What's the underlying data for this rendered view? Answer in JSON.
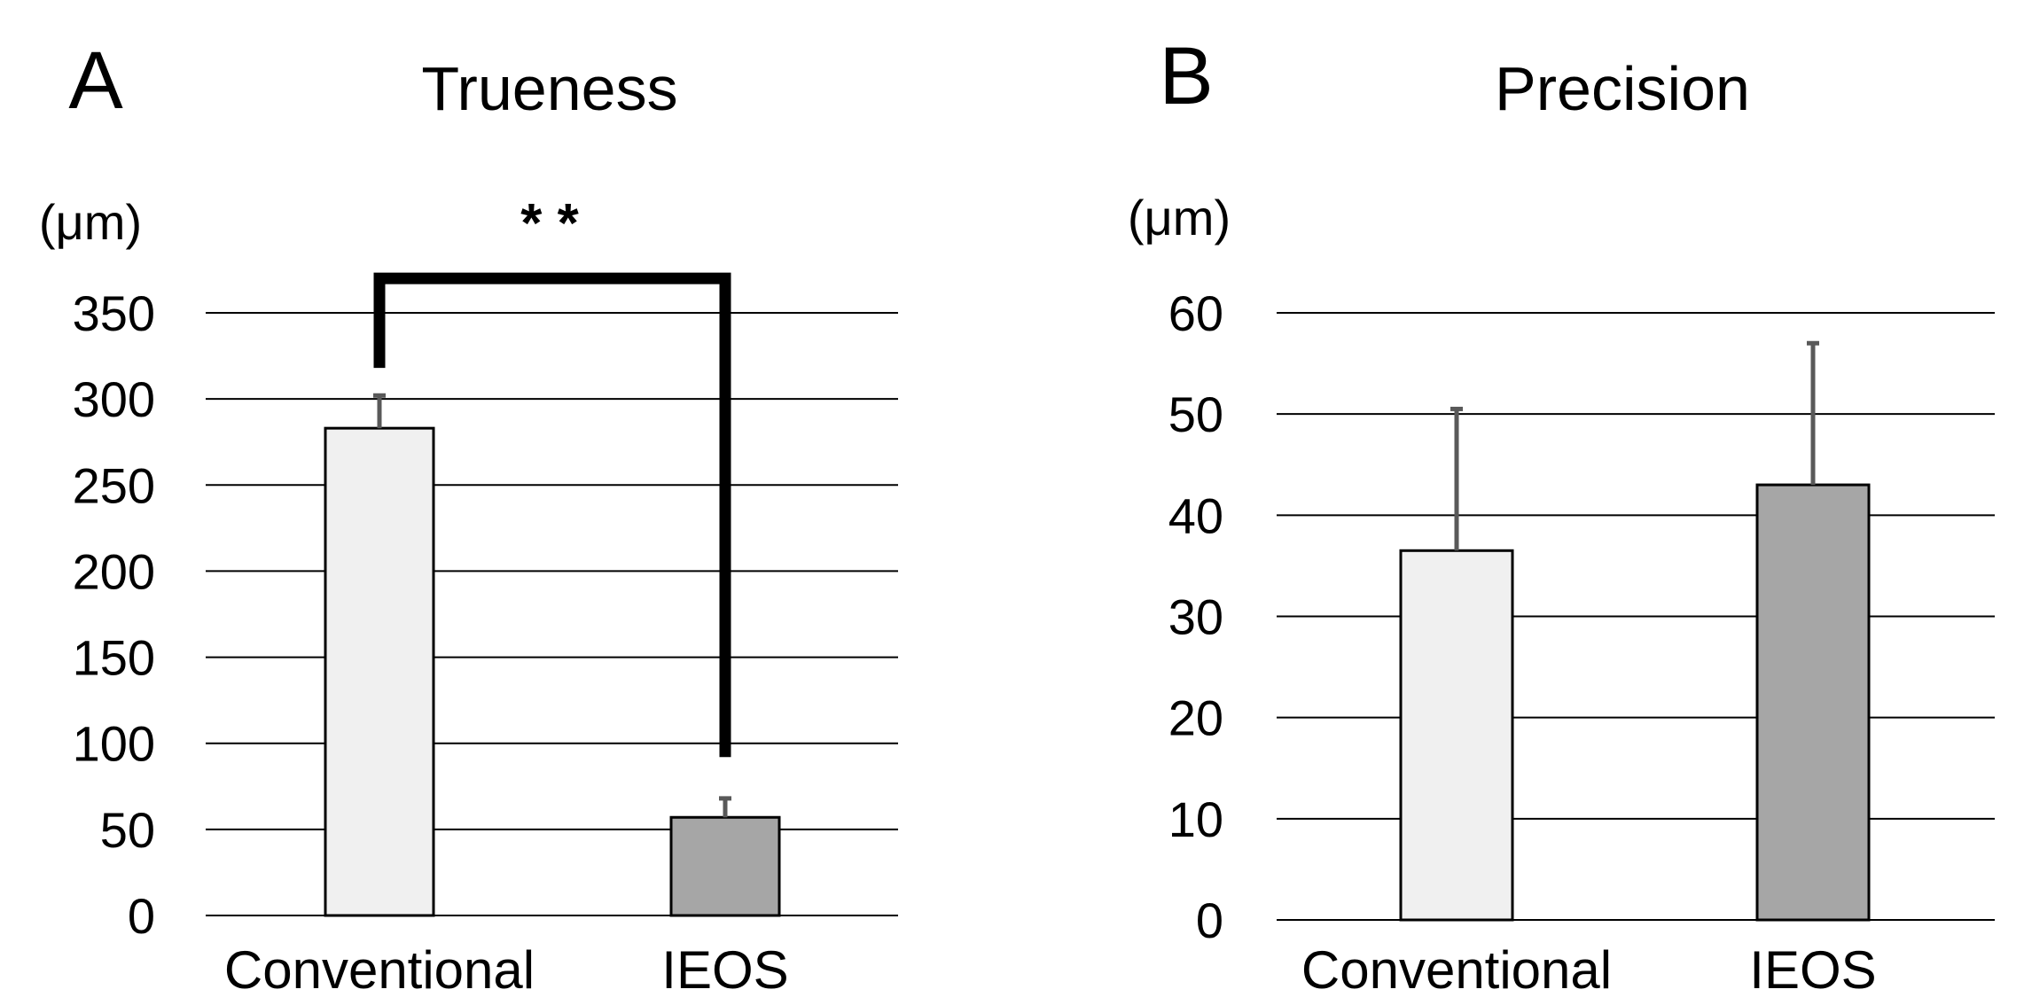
{
  "chart_data": [
    {
      "type": "bar",
      "panel_label": "A",
      "title": "Trueness",
      "unit_label": "(μm)",
      "categories": [
        "Conventional",
        "IEOS"
      ],
      "values": [
        283,
        57
      ],
      "error_upper": [
        302,
        68
      ],
      "bar_colors": [
        "#f0f0f0",
        "#a6a6a6"
      ],
      "ylim": [
        0,
        350
      ],
      "yticks": [
        0,
        50,
        100,
        150,
        200,
        250,
        300,
        350
      ],
      "ytick_labels": [
        "0",
        "50",
        "100",
        "150",
        "200",
        "250",
        "300",
        "350"
      ],
      "grid": true,
      "significance": {
        "label": "* *",
        "between": [
          "Conventional",
          "IEOS"
        ],
        "bracket_top": 370,
        "left_end": 318,
        "right_end": 92
      }
    },
    {
      "type": "bar",
      "panel_label": "B",
      "title": "Precision",
      "unit_label": "(μm)",
      "categories": [
        "Conventional",
        "IEOS"
      ],
      "values": [
        36.5,
        43
      ],
      "error_upper": [
        50.5,
        57
      ],
      "bar_colors": [
        "#f0f0f0",
        "#a6a6a6"
      ],
      "ylim": [
        0,
        60
      ],
      "yticks": [
        0,
        10,
        20,
        30,
        40,
        50,
        60
      ],
      "ytick_labels": [
        "0",
        "10",
        "20",
        "30",
        "40",
        "50",
        "60"
      ],
      "grid": true
    }
  ],
  "colors": {
    "gridline": "#000000",
    "bar_outline": "#000000",
    "error_bar": "#595959",
    "bracket": "#000000"
  }
}
